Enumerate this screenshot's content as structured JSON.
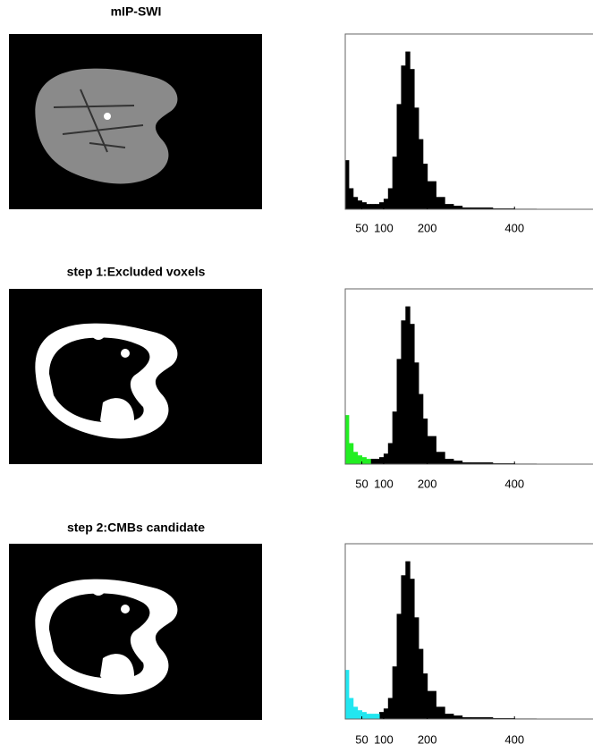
{
  "chart_data": [
    {
      "type": "histogram",
      "title": "mIP-SWI",
      "x": [
        12,
        20,
        30,
        40,
        50,
        60,
        70,
        80,
        90,
        100,
        110,
        120,
        130,
        140,
        150,
        160,
        170,
        180,
        190,
        200,
        220,
        240,
        260,
        280,
        300,
        350,
        400,
        450
      ],
      "series": [
        {
          "color": "#000000",
          "values": [
            28,
            12,
            7,
            5,
            4,
            3,
            3,
            3,
            4,
            6,
            12,
            30,
            60,
            82,
            90,
            80,
            58,
            40,
            26,
            16,
            7,
            3,
            2,
            1,
            1,
            0.5,
            0.3,
            0
          ]
        }
      ],
      "xlim": [
        12,
        580
      ],
      "ylim": [
        0,
        100
      ],
      "xticks": [
        50,
        100,
        200,
        400
      ]
    },
    {
      "type": "histogram",
      "title": "step 1:Excluded voxels",
      "x": [
        12,
        20,
        30,
        40,
        50,
        60,
        70,
        80,
        90,
        100,
        110,
        120,
        130,
        140,
        150,
        160,
        170,
        180,
        190,
        200,
        220,
        240,
        260,
        280,
        300,
        350,
        400,
        450
      ],
      "series": [
        {
          "color": "#000000",
          "values": [
            null,
            null,
            null,
            null,
            null,
            null,
            3,
            3,
            4,
            6,
            12,
            30,
            60,
            82,
            90,
            80,
            58,
            40,
            26,
            16,
            7,
            3,
            2,
            1,
            1,
            0.5,
            0.3,
            0
          ]
        },
        {
          "color": "#22ee22",
          "values": [
            28,
            12,
            7,
            5,
            4,
            3,
            null,
            null,
            null,
            null,
            null,
            null,
            null,
            null,
            null,
            null,
            null,
            null,
            null,
            null,
            null,
            null,
            null,
            null,
            null,
            null,
            null,
            null
          ]
        }
      ],
      "xlim": [
        12,
        580
      ],
      "ylim": [
        0,
        100
      ],
      "xticks": [
        50,
        100,
        200,
        400
      ]
    },
    {
      "type": "histogram",
      "title": "step 2:CMBs candidate",
      "x": [
        12,
        20,
        30,
        40,
        50,
        60,
        70,
        80,
        90,
        100,
        110,
        120,
        130,
        140,
        150,
        160,
        170,
        180,
        190,
        200,
        220,
        240,
        260,
        280,
        300,
        350,
        400,
        450
      ],
      "series": [
        {
          "color": "#000000",
          "values": [
            null,
            null,
            null,
            null,
            null,
            null,
            null,
            null,
            4,
            6,
            12,
            30,
            60,
            82,
            90,
            80,
            58,
            40,
            26,
            16,
            7,
            3,
            2,
            1,
            1,
            0.5,
            0.3,
            0
          ]
        },
        {
          "color": "#22e6f0",
          "values": [
            28,
            12,
            7,
            5,
            4,
            3,
            3,
            3,
            null,
            null,
            null,
            null,
            null,
            null,
            null,
            null,
            null,
            null,
            null,
            null,
            null,
            null,
            null,
            null,
            null,
            null,
            null,
            null
          ]
        }
      ],
      "xlim": [
        12,
        580
      ],
      "ylim": [
        0,
        100
      ],
      "xticks": [
        50,
        100,
        200,
        400
      ]
    }
  ]
}
